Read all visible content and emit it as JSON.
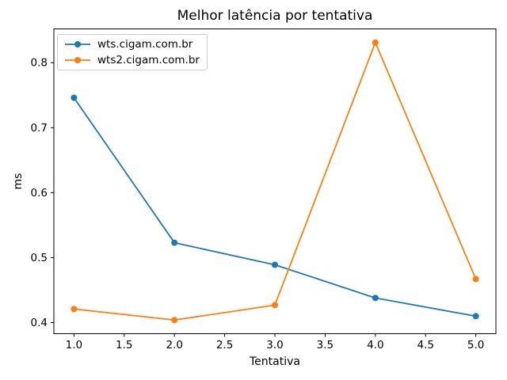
{
  "chart_data": {
    "type": "line",
    "title": "Melhor latência por tentativa",
    "xlabel": "Tentativa",
    "ylabel": "ms",
    "x": [
      1,
      2,
      3,
      4,
      5
    ],
    "series": [
      {
        "name": "wts.cigam.com.br",
        "color": "#1f77b4",
        "marker": "circle",
        "values": [
          0.746,
          0.523,
          0.489,
          0.438,
          0.41
        ]
      },
      {
        "name": "wts2.cigam.com.br",
        "color": "#ff7f0e",
        "marker": "circle",
        "values": [
          0.421,
          0.404,
          0.427,
          0.831,
          0.467
        ]
      }
    ],
    "xlim": [
      0.8,
      5.2
    ],
    "ylim": [
      0.383,
      0.852
    ],
    "xticks": [
      1.0,
      1.5,
      2.0,
      2.5,
      3.0,
      3.5,
      4.0,
      4.5,
      5.0
    ],
    "xtick_labels": [
      "1.0",
      "1.5",
      "2.0",
      "2.5",
      "3.0",
      "3.5",
      "4.0",
      "4.5",
      "5.0"
    ],
    "yticks": [
      0.4,
      0.5,
      0.6,
      0.7,
      0.8
    ],
    "ytick_labels": [
      "0.4",
      "0.5",
      "0.6",
      "0.7",
      "0.8"
    ],
    "grid": false,
    "legend_position": "upper-left",
    "background_color": "#ffffff",
    "axis_color": "#000000"
  }
}
